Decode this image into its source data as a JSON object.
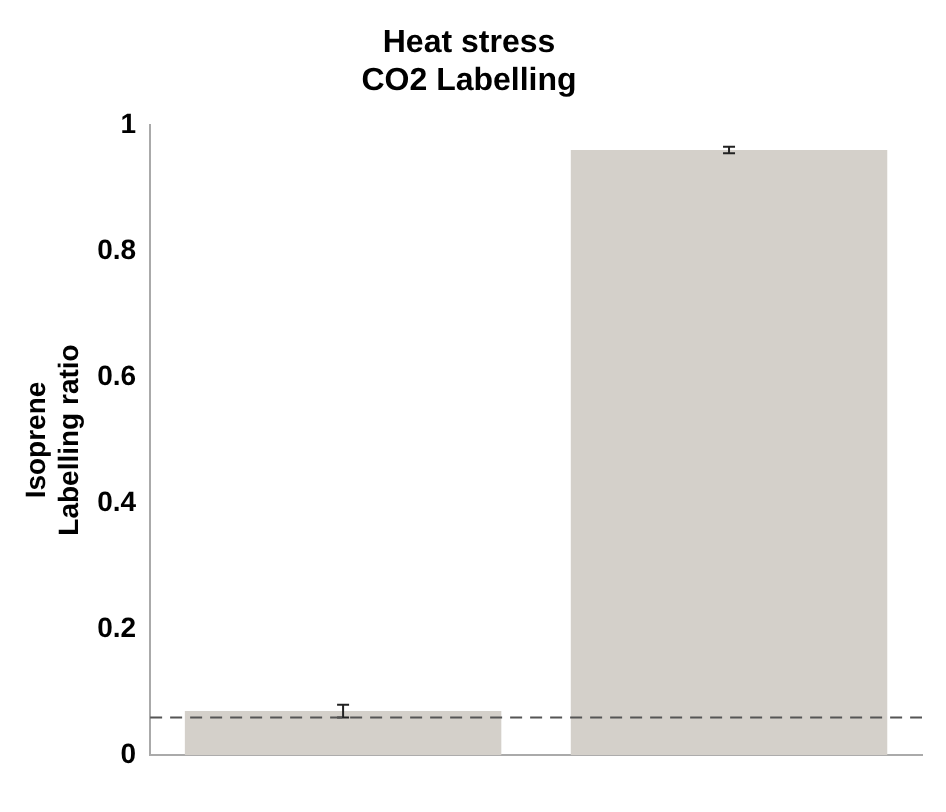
{
  "chart_data": {
    "type": "bar",
    "title": [
      "Heat stress",
      "CO2 Labelling"
    ],
    "ylabel": [
      "Isoprene",
      "Labelling ratio"
    ],
    "categories": [
      null,
      null
    ],
    "values": [
      0.07,
      0.96
    ],
    "errors": [
      0.01,
      0.005
    ],
    "color": "#d4d0ca",
    "ylim": [
      0,
      1
    ],
    "yticks": [
      0,
      0.2,
      0.4,
      0.6,
      0.8,
      1
    ],
    "grid": false,
    "legend": false,
    "ref_lines": [
      {
        "axis": "y",
        "value": 0.06,
        "color": "#555555",
        "line_style": "dashed"
      }
    ]
  }
}
